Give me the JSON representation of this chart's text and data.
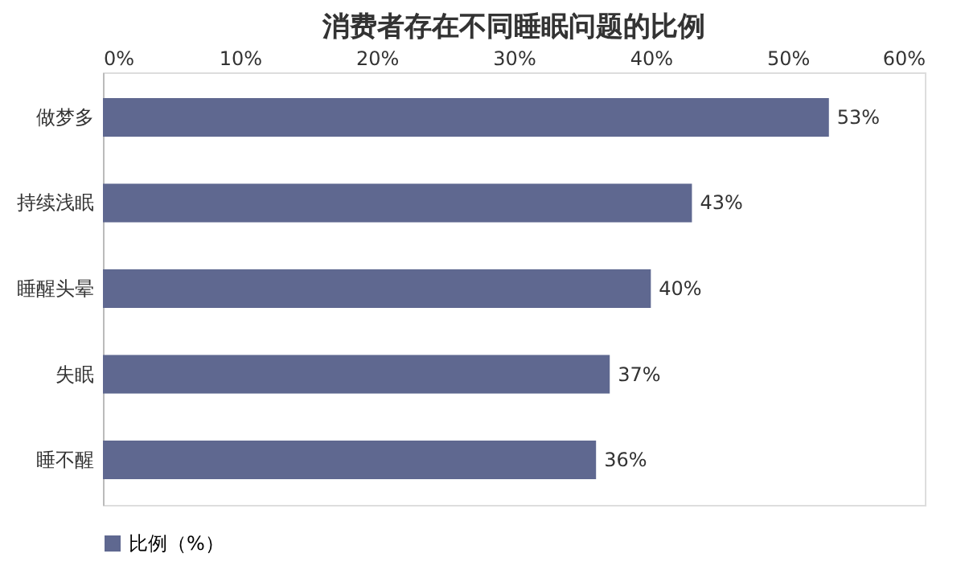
{
  "chart_data": {
    "type": "bar",
    "orientation": "horizontal",
    "title": "消费者存在不同睡眠问题的比例",
    "categories": [
      "做梦多",
      "持续浅眠",
      "睡醒头晕",
      "失眠",
      "睡不醒"
    ],
    "series": [
      {
        "name": "比例（%）",
        "color": "#5f6890",
        "values": [
          53,
          43,
          40,
          37,
          36
        ],
        "value_labels": [
          "53%",
          "43%",
          "40%",
          "37%",
          "36%"
        ]
      }
    ],
    "xlim": [
      0,
      60
    ],
    "xticks": [
      {
        "value": 0,
        "label": "0%"
      },
      {
        "value": 10,
        "label": "10%"
      },
      {
        "value": 20,
        "label": "20%"
      },
      {
        "value": 30,
        "label": "30%"
      },
      {
        "value": 40,
        "label": "40%"
      },
      {
        "value": 50,
        "label": "50%"
      },
      {
        "value": 60,
        "label": "60%"
      }
    ],
    "grid": false,
    "legend": "bottom"
  }
}
